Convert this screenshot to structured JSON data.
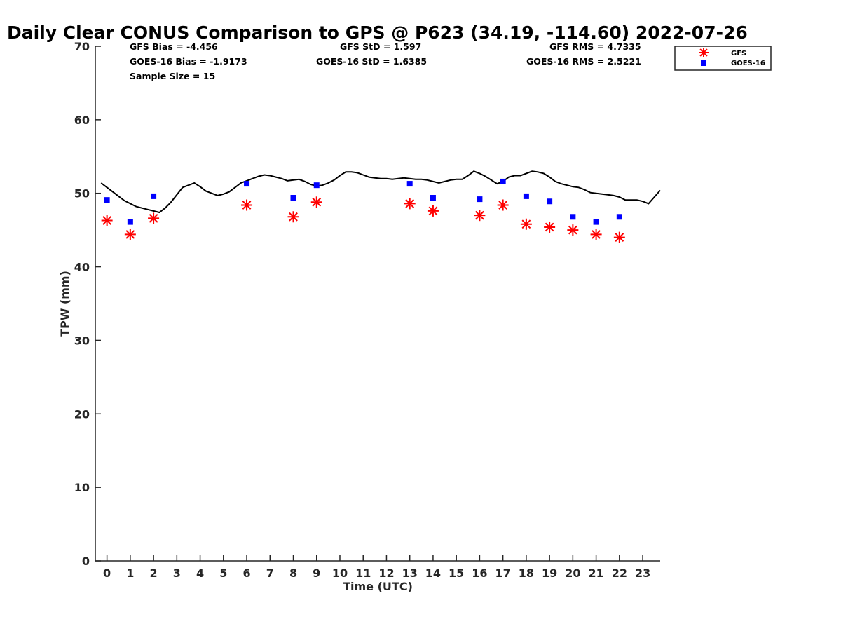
{
  "chart_data": {
    "type": "scatter",
    "title": "Daily Clear CONUS Comparison to GPS @ P623 (34.19, -114.60) 2022-07-26",
    "xlabel": "Time (UTC)",
    "ylabel": "TPW (mm)",
    "xlim": [
      -0.5,
      23.75
    ],
    "ylim": [
      0,
      70
    ],
    "xticks": [
      0,
      1,
      2,
      3,
      4,
      5,
      6,
      7,
      8,
      9,
      10,
      11,
      12,
      13,
      14,
      15,
      16,
      17,
      18,
      19,
      20,
      21,
      22,
      23
    ],
    "yticks": [
      0,
      10,
      20,
      30,
      40,
      50,
      60,
      70
    ],
    "grid": false,
    "legend_position": "top-right",
    "stats": {
      "gfs_bias": "GFS Bias = -4.456",
      "goes_bias": "GOES-16 Bias = -1.9173",
      "sample_size": "Sample Size = 15",
      "gfs_std": "GFS StD = 1.597",
      "goes_std": "GOES-16 StD = 1.6385",
      "gfs_rms": "GFS RMS = 4.7335",
      "goes_rms": "GOES-16 RMS = 2.5221"
    },
    "gps_line": {
      "color": "#000000",
      "x": [
        -0.25,
        0,
        0.25,
        0.5,
        0.75,
        1,
        1.25,
        1.5,
        1.75,
        2,
        2.25,
        2.5,
        2.75,
        3,
        3.25,
        3.5,
        3.75,
        4,
        4.25,
        4.5,
        4.75,
        5,
        5.25,
        5.5,
        5.75,
        6,
        6.25,
        6.5,
        6.75,
        7,
        7.25,
        7.5,
        7.75,
        8,
        8.25,
        8.5,
        8.75,
        9,
        9.25,
        9.5,
        9.75,
        10,
        10.25,
        10.5,
        10.75,
        11,
        11.25,
        11.5,
        11.75,
        12,
        12.25,
        12.5,
        12.75,
        13,
        13.25,
        13.5,
        13.75,
        14,
        14.25,
        14.5,
        14.75,
        15,
        15.25,
        15.5,
        15.75,
        16,
        16.25,
        16.5,
        16.75,
        17,
        17.25,
        17.5,
        17.75,
        18,
        18.25,
        18.5,
        18.75,
        19,
        19.25,
        19.5,
        19.75,
        20,
        20.25,
        20.5,
        20.75,
        21,
        21.25,
        21.5,
        21.75,
        22,
        22.25,
        22.5,
        22.75,
        23,
        23.25,
        23.5,
        23.75
      ],
      "y": [
        51.4,
        50.8,
        50.2,
        49.6,
        49.0,
        48.6,
        48.2,
        48.0,
        47.8,
        47.6,
        47.4,
        48.0,
        48.8,
        49.8,
        50.8,
        51.1,
        51.4,
        50.9,
        50.3,
        50.0,
        49.7,
        49.9,
        50.2,
        50.8,
        51.4,
        51.7,
        52.0,
        52.3,
        52.5,
        52.4,
        52.2,
        52.0,
        51.7,
        51.8,
        51.9,
        51.6,
        51.2,
        51.0,
        51.1,
        51.4,
        51.8,
        52.4,
        52.9,
        52.9,
        52.8,
        52.5,
        52.2,
        52.1,
        52.0,
        52.0,
        51.9,
        52.0,
        52.1,
        52.0,
        51.9,
        51.9,
        51.8,
        51.6,
        51.4,
        51.6,
        51.8,
        51.9,
        51.9,
        52.4,
        53.0,
        52.7,
        52.3,
        51.8,
        51.3,
        51.6,
        52.2,
        52.4,
        52.4,
        52.7,
        53.0,
        52.9,
        52.7,
        52.2,
        51.6,
        51.3,
        51.1,
        50.9,
        50.8,
        50.5,
        50.1,
        50.0,
        49.9,
        49.8,
        49.7,
        49.5,
        49.1,
        49.1,
        49.1,
        48.9,
        48.6,
        49.5,
        50.4
      ]
    },
    "series": [
      {
        "name": "GFS",
        "marker": "asterisk",
        "color": "#ff0000",
        "x": [
          0,
          1,
          2,
          6,
          8,
          9,
          13,
          14,
          16,
          17,
          18,
          19,
          20,
          21,
          22
        ],
        "y": [
          46.3,
          44.4,
          46.6,
          48.4,
          46.8,
          48.8,
          48.6,
          47.6,
          47.0,
          48.4,
          45.8,
          45.4,
          45.0,
          44.4,
          44.0
        ]
      },
      {
        "name": "GOES-16",
        "marker": "square",
        "color": "#0000ff",
        "x": [
          0,
          1,
          2,
          6,
          8,
          9,
          13,
          14,
          16,
          17,
          18,
          19,
          20,
          21,
          22
        ],
        "y": [
          49.1,
          46.1,
          49.6,
          51.3,
          49.4,
          51.1,
          51.3,
          49.4,
          49.2,
          51.6,
          49.6,
          48.9,
          46.8,
          46.1,
          46.8
        ]
      }
    ]
  }
}
